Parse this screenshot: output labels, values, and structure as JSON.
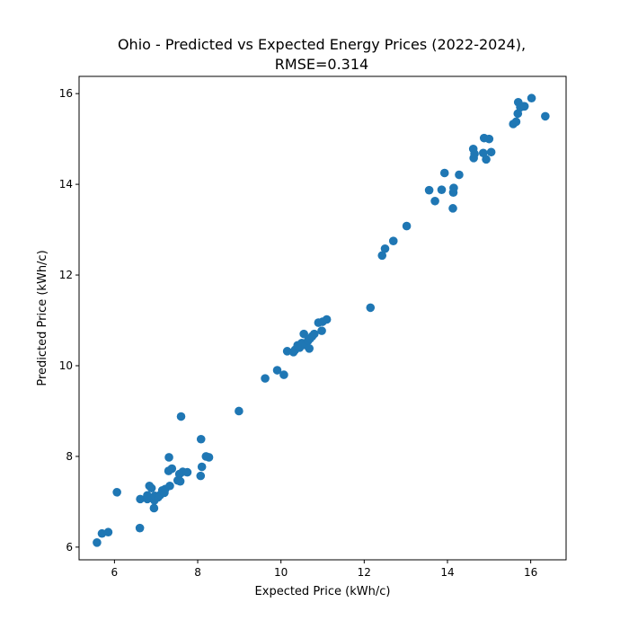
{
  "chart_data": {
    "type": "scatter",
    "title_line1": "Ohio - Predicted vs Expected Energy Prices (2022-2024),",
    "title_line2": "RMSE=0.314",
    "xlabel": "Expected Price (kWh/c)",
    "ylabel": "Predicted Price (kWh/c)",
    "xlim": [
      5.15,
      16.85
    ],
    "ylim": [
      5.72,
      16.38
    ],
    "xticks": [
      6,
      8,
      10,
      12,
      14,
      16
    ],
    "yticks": [
      6,
      8,
      10,
      12,
      14,
      16
    ],
    "grid": false,
    "marker_color": "#1f77b4",
    "points": [
      [
        5.58,
        6.1
      ],
      [
        5.7,
        6.3
      ],
      [
        5.85,
        6.33
      ],
      [
        6.06,
        7.21
      ],
      [
        6.61,
        6.42
      ],
      [
        6.62,
        7.06
      ],
      [
        6.79,
        7.06
      ],
      [
        6.79,
        7.14
      ],
      [
        6.84,
        7.35
      ],
      [
        6.89,
        7.3
      ],
      [
        6.95,
        6.86
      ],
      [
        6.96,
        7.03
      ],
      [
        6.97,
        7.13
      ],
      [
        7.05,
        7.1
      ],
      [
        7.1,
        7.15
      ],
      [
        7.15,
        7.25
      ],
      [
        7.2,
        7.2
      ],
      [
        7.22,
        7.28
      ],
      [
        7.3,
        7.68
      ],
      [
        7.31,
        7.98
      ],
      [
        7.33,
        7.35
      ],
      [
        7.38,
        7.73
      ],
      [
        7.52,
        7.47
      ],
      [
        7.56,
        7.61
      ],
      [
        7.58,
        7.45
      ],
      [
        7.6,
        8.88
      ],
      [
        7.64,
        7.66
      ],
      [
        7.75,
        7.65
      ],
      [
        8.07,
        7.57
      ],
      [
        8.08,
        8.38
      ],
      [
        8.1,
        7.77
      ],
      [
        8.2,
        8.0
      ],
      [
        8.27,
        7.98
      ],
      [
        8.99,
        9.0
      ],
      [
        9.62,
        9.72
      ],
      [
        9.91,
        9.9
      ],
      [
        10.07,
        9.8
      ],
      [
        10.15,
        10.32
      ],
      [
        10.3,
        10.3
      ],
      [
        10.34,
        10.35
      ],
      [
        10.4,
        10.45
      ],
      [
        10.45,
        10.4
      ],
      [
        10.5,
        10.5
      ],
      [
        10.55,
        10.7
      ],
      [
        10.6,
        10.45
      ],
      [
        10.65,
        10.55
      ],
      [
        10.68,
        10.38
      ],
      [
        10.7,
        10.6
      ],
      [
        10.75,
        10.65
      ],
      [
        10.8,
        10.7
      ],
      [
        10.9,
        10.95
      ],
      [
        10.98,
        10.77
      ],
      [
        11.0,
        10.97
      ],
      [
        11.1,
        11.02
      ],
      [
        12.15,
        11.28
      ],
      [
        12.43,
        12.43
      ],
      [
        12.5,
        12.58
      ],
      [
        12.7,
        12.75
      ],
      [
        13.02,
        13.08
      ],
      [
        13.56,
        13.87
      ],
      [
        13.7,
        13.63
      ],
      [
        13.86,
        13.88
      ],
      [
        13.93,
        14.25
      ],
      [
        14.13,
        13.47
      ],
      [
        14.14,
        13.82
      ],
      [
        14.15,
        13.92
      ],
      [
        14.28,
        14.21
      ],
      [
        14.62,
        14.78
      ],
      [
        14.63,
        14.58
      ],
      [
        14.65,
        14.67
      ],
      [
        14.86,
        14.69
      ],
      [
        14.88,
        15.02
      ],
      [
        14.93,
        14.55
      ],
      [
        15.0,
        15.0
      ],
      [
        15.05,
        14.71
      ],
      [
        15.58,
        15.33
      ],
      [
        15.65,
        15.38
      ],
      [
        15.69,
        15.56
      ],
      [
        15.7,
        15.81
      ],
      [
        15.75,
        15.7
      ],
      [
        15.82,
        15.72
      ],
      [
        15.85,
        15.72
      ],
      [
        16.02,
        15.9
      ],
      [
        16.35,
        15.5
      ]
    ]
  }
}
